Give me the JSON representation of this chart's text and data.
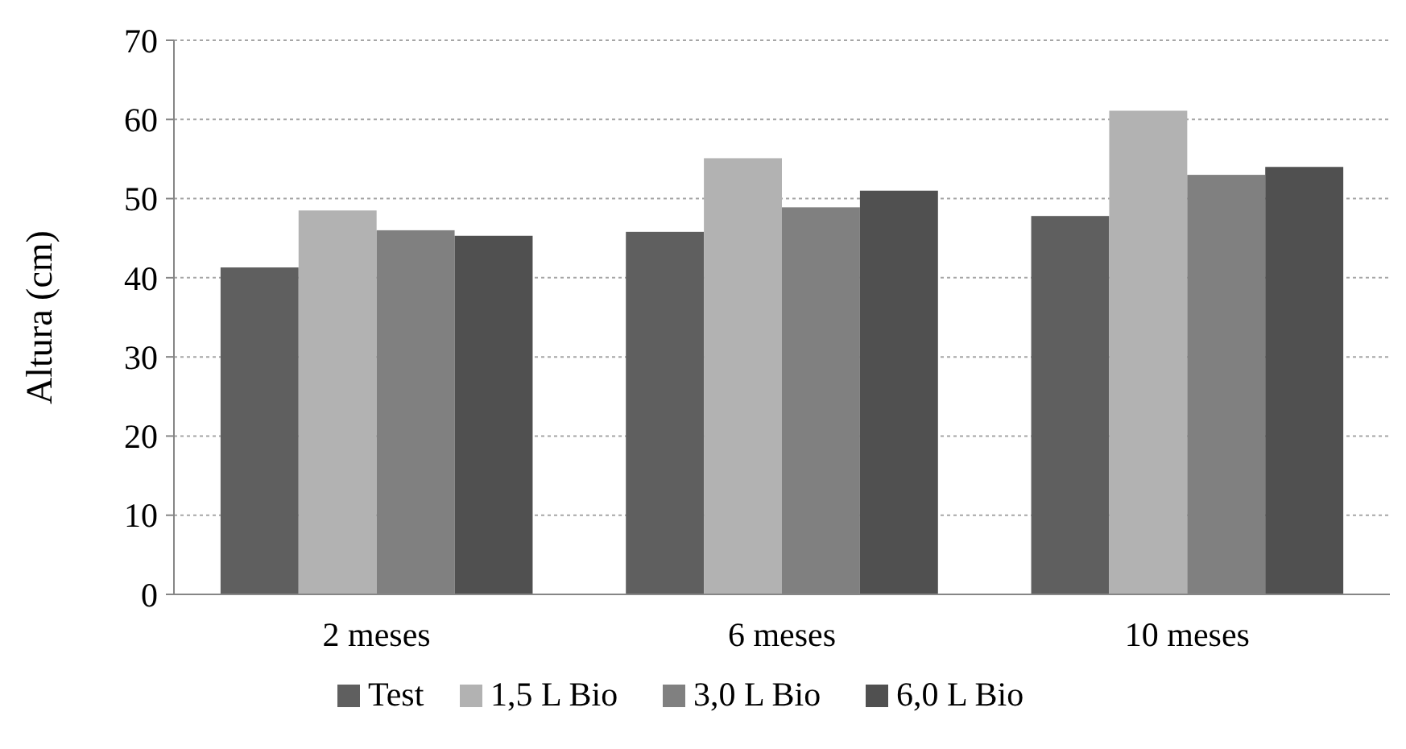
{
  "chart_data": {
    "type": "bar",
    "ylabel": "Altura (cm)",
    "categories": [
      "2 meses",
      "6 meses",
      "10 meses"
    ],
    "series": [
      {
        "name": "Test",
        "color": "#5f5f5f",
        "values": [
          41.3,
          45.8,
          47.8
        ]
      },
      {
        "name": "1,5 L Bio",
        "color": "#b2b2b2",
        "values": [
          48.5,
          55.1,
          61.1
        ]
      },
      {
        "name": "3,0 L Bio",
        "color": "#808080",
        "values": [
          46.0,
          48.9,
          53.0
        ]
      },
      {
        "name": "6,0 L Bio",
        "color": "#505050",
        "values": [
          45.3,
          51.0,
          54.0
        ]
      }
    ],
    "ylim": [
      0,
      70
    ],
    "yticks": [
      0,
      10,
      20,
      30,
      40,
      50,
      60,
      70
    ],
    "grid": "y",
    "legend": "bottom"
  }
}
